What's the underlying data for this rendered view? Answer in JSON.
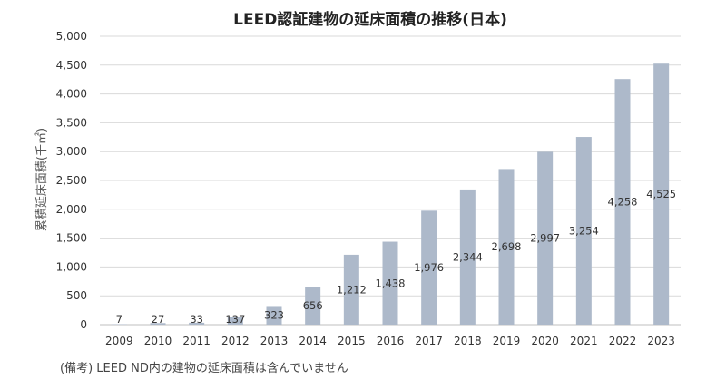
{
  "chart_data": {
    "type": "bar",
    "title": "LEED認証建物の延床面積の推移(日本)",
    "ylabel": "累積延床面積(千㎡)",
    "xlabel": "",
    "categories": [
      "2009",
      "2010",
      "2011",
      "2012",
      "2013",
      "2014",
      "2015",
      "2016",
      "2017",
      "2018",
      "2019",
      "2020",
      "2021",
      "2022",
      "2023"
    ],
    "values": [
      7,
      27,
      33,
      137,
      323,
      656,
      1212,
      1438,
      1976,
      2344,
      2698,
      2997,
      3254,
      4258,
      4525
    ],
    "data_labels": [
      "7",
      "27",
      "33",
      "137",
      "323",
      "656",
      "1,212",
      "1,438",
      "1,976",
      "2,344",
      "2,698",
      "2,997",
      "3,254",
      "4,258",
      "4,525"
    ],
    "ylim": [
      0,
      5000
    ],
    "yticks": [
      0,
      500,
      1000,
      1500,
      2000,
      2500,
      3000,
      3500,
      4000,
      4500,
      5000
    ],
    "ytick_labels": [
      "0",
      "500",
      "1,000",
      "1,500",
      "2,000",
      "2,500",
      "3,000",
      "3,500",
      "4,000",
      "4,500",
      "5,000"
    ],
    "grid": true,
    "bar_color": "#adb9ca"
  },
  "note": "(備考) LEED ND内の建物の延床面積は含んでいません"
}
